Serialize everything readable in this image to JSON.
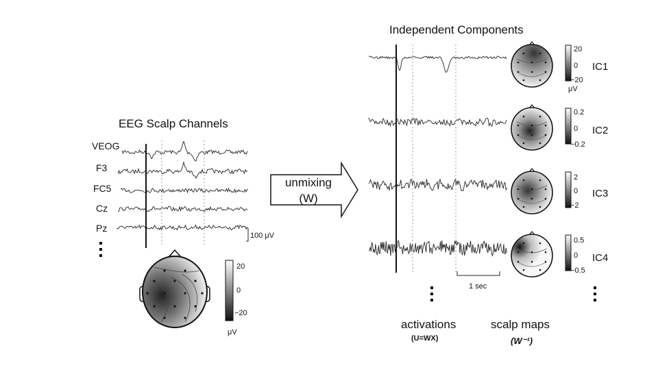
{
  "left": {
    "title": "EEG Scalp Channels",
    "channels": [
      "VEOG",
      "F3",
      "FC5",
      "Cz",
      "Pz"
    ],
    "scale_label": "100 μV",
    "colorbar": {
      "max": "20",
      "mid": "0",
      "min": "−20",
      "unit": "μV"
    }
  },
  "arrow": {
    "line1": "unmixing",
    "line2": "(W)"
  },
  "right": {
    "title": "Independent Components",
    "components": [
      {
        "name": "IC1",
        "max": "20",
        "mid": "0",
        "min": "−20",
        "unit": "μV"
      },
      {
        "name": "IC2",
        "max": "0.2",
        "mid": "0",
        "min": "−0.2"
      },
      {
        "name": "IC3",
        "max": "2",
        "mid": "0",
        "min": "−2"
      },
      {
        "name": "IC4",
        "max": "0.5",
        "mid": "0",
        "min": "−0.5"
      }
    ],
    "time_scale": "1 sec",
    "activations_label": "activations",
    "activations_formula": "(U=WX)",
    "scalp_maps_label": "scalp maps",
    "scalp_maps_formula": "(W⁻¹)"
  },
  "colors": {
    "trace": "#222222",
    "grid": "#999999"
  }
}
